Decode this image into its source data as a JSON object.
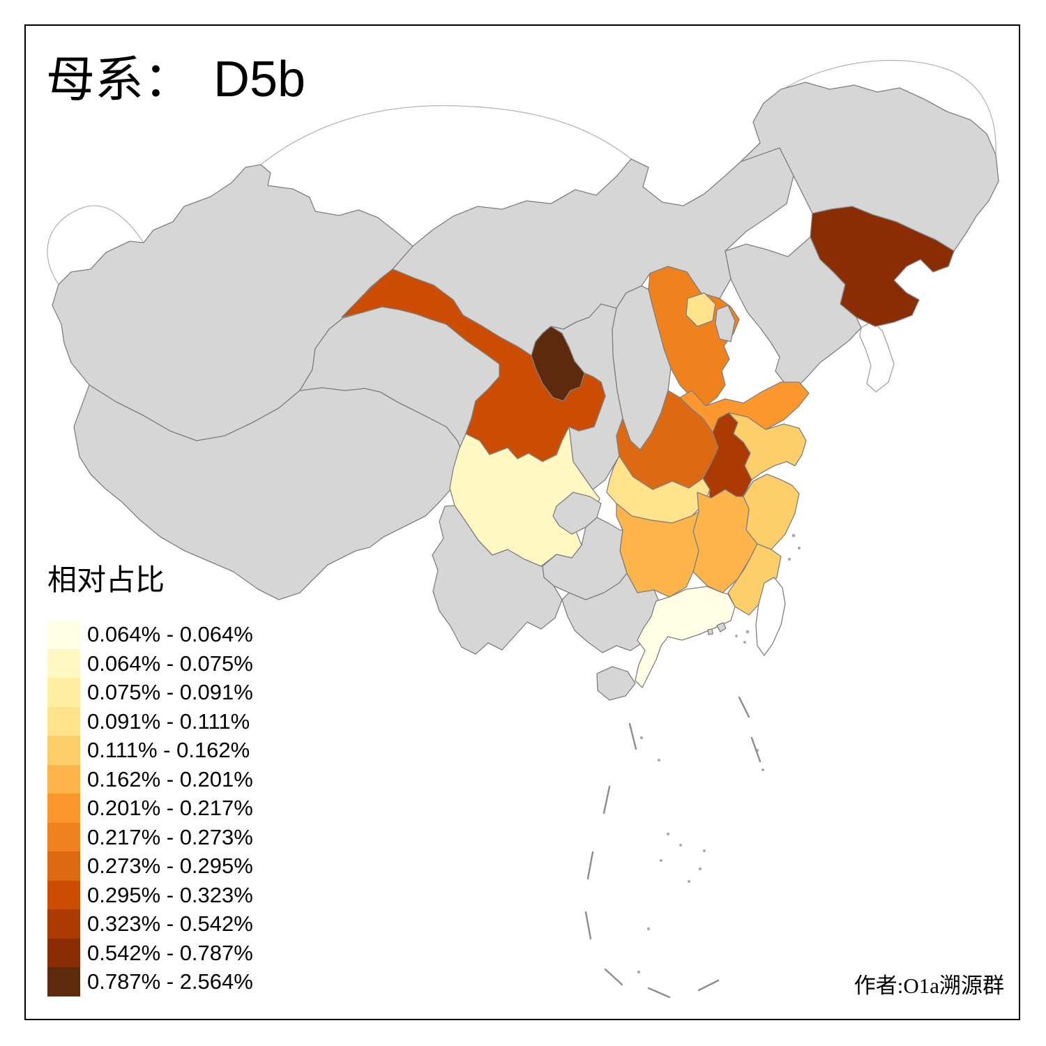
{
  "title": {
    "prefix": "母系：",
    "haplogroup": "D5b"
  },
  "credit": "作者:O1a溯源群",
  "legend": {
    "title": "相对占比",
    "items": [
      {
        "label": "0.064% - 0.064%",
        "color": "#FFFFE5"
      },
      {
        "label": "0.064% - 0.075%",
        "color": "#FFF8C2"
      },
      {
        "label": "0.075% - 0.091%",
        "color": "#FEEEA2"
      },
      {
        "label": "0.091% - 0.111%",
        "color": "#FEE28C"
      },
      {
        "label": "0.111% - 0.162%",
        "color": "#FDCF6B"
      },
      {
        "label": "0.162% - 0.201%",
        "color": "#FDB44B"
      },
      {
        "label": "0.201% - 0.217%",
        "color": "#FC972D"
      },
      {
        "label": "0.217% - 0.273%",
        "color": "#F0821E"
      },
      {
        "label": "0.273% - 0.295%",
        "color": "#DD6A12"
      },
      {
        "label": "0.295% - 0.323%",
        "color": "#CC4C02"
      },
      {
        "label": "0.323% - 0.542%",
        "color": "#AC3B03"
      },
      {
        "label": "0.542% - 0.787%",
        "color": "#8B2D04"
      },
      {
        "label": "0.787% - 2.564%",
        "color": "#5E2A0E"
      }
    ]
  },
  "map": {
    "stroke_color": "#7F7F7F",
    "no_data_color": "#D6D6D6",
    "sea_color": "#FFFFFF",
    "provinces": [
      {
        "id": "xinjiang",
        "color": null,
        "legend_bin": null
      },
      {
        "id": "tibet",
        "color": null,
        "legend_bin": null
      },
      {
        "id": "qinghai",
        "color": null,
        "legend_bin": null
      },
      {
        "id": "inner-mongolia",
        "color": null,
        "legend_bin": null
      },
      {
        "id": "heilongjiang",
        "color": null,
        "legend_bin": null
      },
      {
        "id": "jilin",
        "color": "#8B2D04",
        "legend_bin": 12
      },
      {
        "id": "liaoning",
        "color": null,
        "legend_bin": null
      },
      {
        "id": "hebei",
        "color": "#F0821E",
        "legend_bin": 8
      },
      {
        "id": "beijing",
        "color": "#FEE28C",
        "legend_bin": 4
      },
      {
        "id": "tianjin",
        "color": null,
        "legend_bin": null
      },
      {
        "id": "shanxi",
        "color": null,
        "legend_bin": null
      },
      {
        "id": "shandong",
        "color": "#FC972D",
        "legend_bin": 7
      },
      {
        "id": "henan",
        "color": "#DD6A12",
        "legend_bin": 9
      },
      {
        "id": "shaanxi",
        "color": null,
        "legend_bin": null
      },
      {
        "id": "ningxia",
        "color": "#5E2A0E",
        "legend_bin": 13
      },
      {
        "id": "gansu",
        "color": "#CC4C02",
        "legend_bin": 10
      },
      {
        "id": "sichuan",
        "color": "#FFF8C2",
        "legend_bin": 2
      },
      {
        "id": "chongqing",
        "color": null,
        "legend_bin": null
      },
      {
        "id": "hubei",
        "color": "#FEE28C",
        "legend_bin": 4
      },
      {
        "id": "anhui",
        "color": "#AC3B03",
        "legend_bin": 11
      },
      {
        "id": "jiangsu",
        "color": "#FDCF6B",
        "legend_bin": 5
      },
      {
        "id": "shanghai",
        "color": "#FEEEA2",
        "legend_bin": 3
      },
      {
        "id": "zhejiang",
        "color": "#FDCF6B",
        "legend_bin": 5
      },
      {
        "id": "jiangxi",
        "color": "#FDB44B",
        "legend_bin": 6
      },
      {
        "id": "hunan",
        "color": "#FDB44B",
        "legend_bin": 6
      },
      {
        "id": "fujian",
        "color": "#FDCF6B",
        "legend_bin": 5
      },
      {
        "id": "guizhou",
        "color": null,
        "legend_bin": null
      },
      {
        "id": "yunnan",
        "color": null,
        "legend_bin": null
      },
      {
        "id": "guangxi",
        "color": null,
        "legend_bin": null
      },
      {
        "id": "guangdong",
        "color": "#FFFFE5",
        "legend_bin": 1
      },
      {
        "id": "hainan",
        "color": null,
        "legend_bin": null
      },
      {
        "id": "taiwan",
        "color": "#FFFFFF",
        "legend_bin": null
      },
      {
        "id": "hongkong",
        "color": null,
        "legend_bin": null
      },
      {
        "id": "macau",
        "color": null,
        "legend_bin": null
      }
    ]
  }
}
